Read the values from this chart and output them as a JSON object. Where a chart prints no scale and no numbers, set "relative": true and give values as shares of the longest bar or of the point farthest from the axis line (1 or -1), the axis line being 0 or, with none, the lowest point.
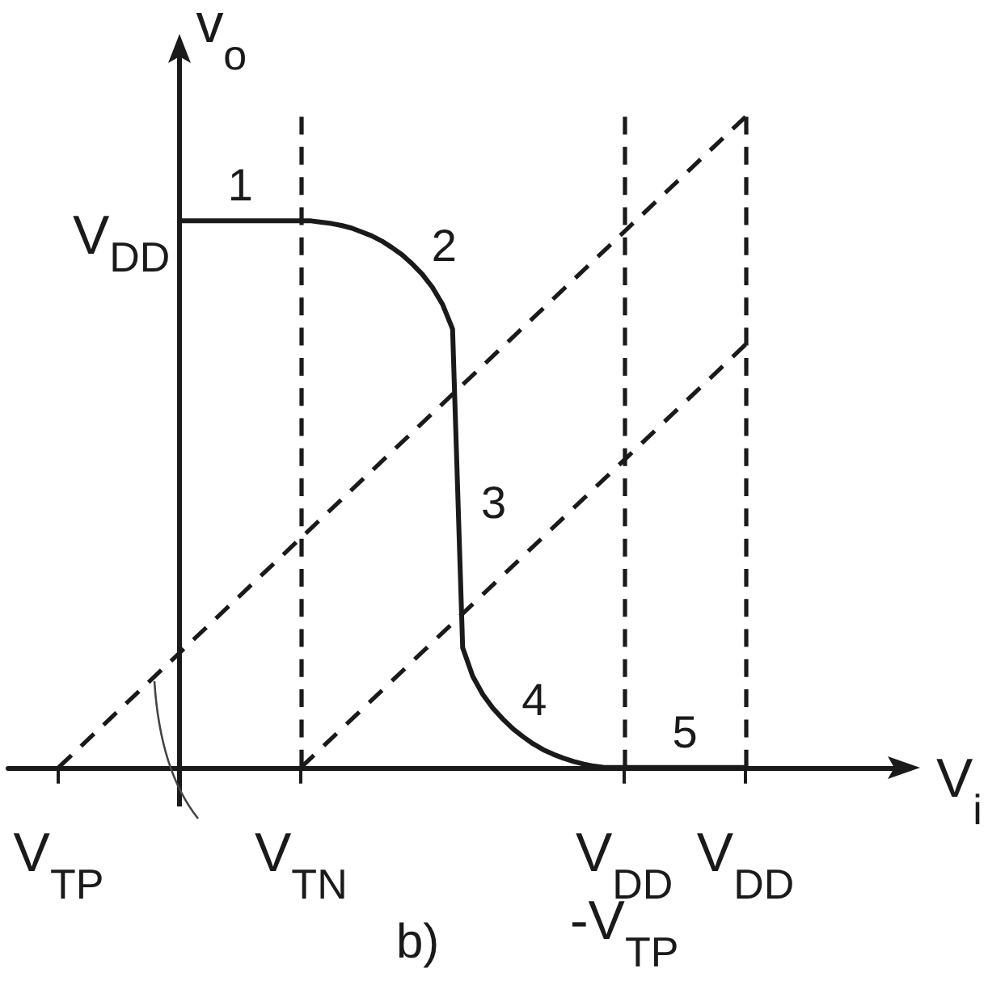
{
  "chart_data": {
    "type": "line",
    "title": "b)",
    "xlabel": "V$_{i}$",
    "ylabel": "v$_{o}$",
    "relative": true,
    "marker": "none",
    "categories": [
      null,
      null,
      null,
      null,
      null,
      "V$_{TP}$",
      null,
      null,
      null,
      null,
      null,
      null,
      null,
      null,
      null,
      null,
      null,
      null,
      null,
      null,
      null,
      null,
      null,
      null,
      null,
      null,
      null,
      null,
      null,
      "V$_{TN}$",
      null,
      null,
      null,
      null,
      null,
      null,
      null,
      null,
      null,
      null,
      null,
      null,
      null,
      null,
      null,
      null,
      null,
      null,
      null,
      null,
      null,
      null,
      null,
      null,
      null,
      null,
      null,
      null,
      null,
      null,
      null,
      "V$_{DD}$ -V$_{TP}$",
      null,
      null,
      null,
      null,
      null,
      null,
      null,
      null,
      null,
      null,
      null,
      "V$_{DD}$",
      null,
      null,
      null,
      null,
      null,
      null,
      null,
      null,
      null,
      null,
      null,
      null,
      null,
      null,
      null,
      null
    ],
    "series": [
      {
        "color": "#1a1a1a",
        "values": [
          null,
          null,
          null,
          null,
          null,
          null,
          null,
          null,
          null,
          null,
          null,
          null,
          null,
          null,
          null,
          null,
          null,
          0.84,
          0.84,
          0.84,
          0.84,
          0.84,
          0.84,
          0.84,
          0.84,
          0.84,
          0.84,
          0.84,
          0.84,
          0.84,
          0.84,
          0.838,
          0.836,
          0.833,
          0.829,
          0.823,
          0.817,
          0.809,
          0.799,
          0.788,
          0.774,
          0.758,
          0.738,
          0.712,
          0.674,
          0.184,
          0.14,
          0.112,
          0.091,
          0.074,
          0.059,
          0.047,
          0.036,
          0.027,
          0.02,
          0.014,
          0.009,
          0.005,
          0.002,
          0,
          0,
          0,
          0,
          0,
          0,
          0,
          0,
          0,
          0,
          0,
          0,
          0,
          0,
          0,
          null,
          null,
          null,
          null,
          null,
          null,
          null,
          null,
          null,
          null,
          null,
          null,
          null,
          null,
          null,
          null
        ]
      },
      {
        "color": "#1a1a1a",
        "line_style": "dashed",
        "x": [
          "V$_{TP}$",
          "V$_{DD}$"
        ],
        "values": [
          0,
          1
        ]
      },
      {
        "color": "#1a1a1a",
        "line_style": "dashed",
        "x": [
          "V$_{TN}$",
          "V$_{DD}$"
        ],
        "values": [
          0,
          0.65
        ]
      }
    ],
    "ref_lines": [
      {
        "axis": "x",
        "value": "V$_{TN}$",
        "color": "#1a1a1a",
        "line_style": "dashed"
      },
      {
        "axis": "x",
        "value": "V$_{DD}$ -V$_{TP}$",
        "color": "#1a1a1a",
        "line_style": "dashed"
      },
      {
        "axis": "x",
        "value": "V$_{DD}$",
        "color": "#1a1a1a",
        "line_style": "dashed"
      }
    ],
    "annotations": [
      "1",
      "2",
      "3",
      "4",
      "5",
      "V$_{DD}$"
    ]
  }
}
